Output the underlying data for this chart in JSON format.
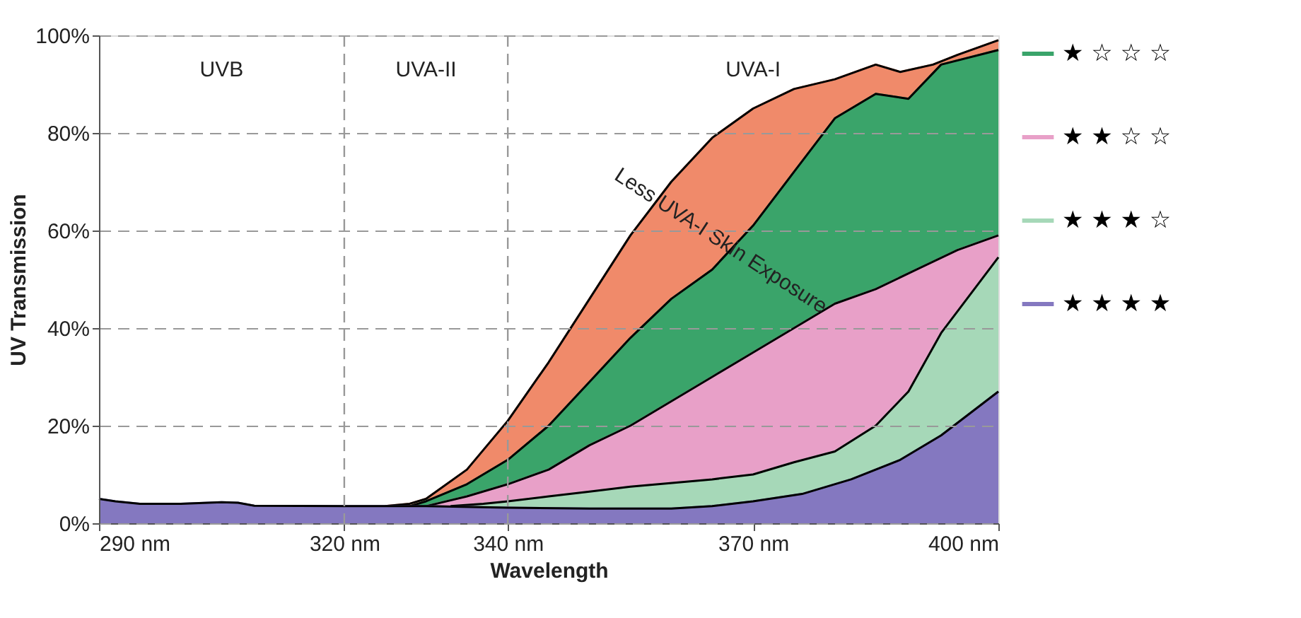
{
  "chart_data": {
    "type": "area",
    "xlabel": "Wavelength",
    "ylabel": "UV Transmission",
    "xlim": [
      290,
      400
    ],
    "ylim": [
      0,
      100
    ],
    "xticks": [
      {
        "value": 290,
        "label": "290 nm"
      },
      {
        "value": 320,
        "label": "320 nm"
      },
      {
        "value": 340,
        "label": "340 nm"
      },
      {
        "value": 370,
        "label": "370 nm"
      },
      {
        "value": 400,
        "label": "400 nm"
      }
    ],
    "yticks": [
      {
        "value": 0,
        "label": "0%"
      },
      {
        "value": 20,
        "label": "20%"
      },
      {
        "value": 40,
        "label": "40%"
      },
      {
        "value": 60,
        "label": "60%"
      },
      {
        "value": 80,
        "label": "80%"
      },
      {
        "value": 100,
        "label": "100%"
      }
    ],
    "grid": "y",
    "legend": "right",
    "series": [
      {
        "color": "#f08a6a",
        "x": [
          325,
          328,
          330,
          335,
          340,
          345,
          350,
          355,
          360,
          365,
          370,
          375,
          380,
          385,
          388,
          392,
          395,
          400
        ],
        "values": [
          3.5,
          4,
          5,
          11,
          21,
          33,
          46,
          59,
          70,
          79,
          85,
          89,
          91,
          94,
          92.5,
          94,
          96,
          99
        ]
      },
      {
        "name": "★ ☆ ☆ ☆",
        "color": "#3aa46a",
        "x": [
          328,
          330,
          335,
          340,
          345,
          350,
          355,
          360,
          365,
          370,
          375,
          380,
          385,
          389,
          393,
          400
        ],
        "values": [
          3.5,
          4.5,
          8,
          13,
          20,
          29,
          38,
          46,
          52,
          61,
          72,
          83,
          88,
          87,
          94,
          97
        ]
      },
      {
        "name": "★ ★ ☆ ☆",
        "color": "#e8a0c8",
        "x": [
          330,
          335,
          340,
          345,
          350,
          355,
          360,
          365,
          370,
          375,
          380,
          385,
          390,
          395,
          400
        ],
        "values": [
          3.5,
          5.5,
          8,
          11,
          16,
          20,
          25,
          30,
          35,
          40,
          45,
          48,
          52,
          56,
          59
        ]
      },
      {
        "name": "★ ★ ★ ☆",
        "color": "#a6d8b8",
        "x": [
          333,
          337,
          340,
          345,
          350,
          355,
          365,
          370,
          375,
          380,
          385,
          389,
          393,
          400
        ],
        "values": [
          3.5,
          4,
          4.5,
          5.5,
          6.5,
          7.5,
          9,
          10,
          12.5,
          14.7,
          20,
          27,
          39,
          54.5
        ]
      },
      {
        "name": "★ ★ ★ ★",
        "color": "#8478c0",
        "x": [
          290,
          292,
          295,
          300,
          305,
          307,
          309,
          320,
          330,
          340,
          350,
          360,
          365,
          370,
          376,
          382,
          388,
          393,
          400
        ],
        "values": [
          5,
          4.5,
          4,
          4,
          4.3,
          4.2,
          3.6,
          3.5,
          3.5,
          3.2,
          3,
          3,
          3.5,
          4.5,
          6,
          9,
          13,
          18,
          27
        ]
      }
    ],
    "ref_lines": [
      {
        "axis": "x",
        "value": 320,
        "color": "#999999",
        "line_style": "dashed"
      },
      {
        "axis": "x",
        "value": 340,
        "color": "#999999",
        "line_style": "dashed"
      }
    ],
    "annotations": [
      "UVB",
      "UVA-II",
      "UVA-I",
      "Less UVA-I Skin Exposure"
    ]
  }
}
